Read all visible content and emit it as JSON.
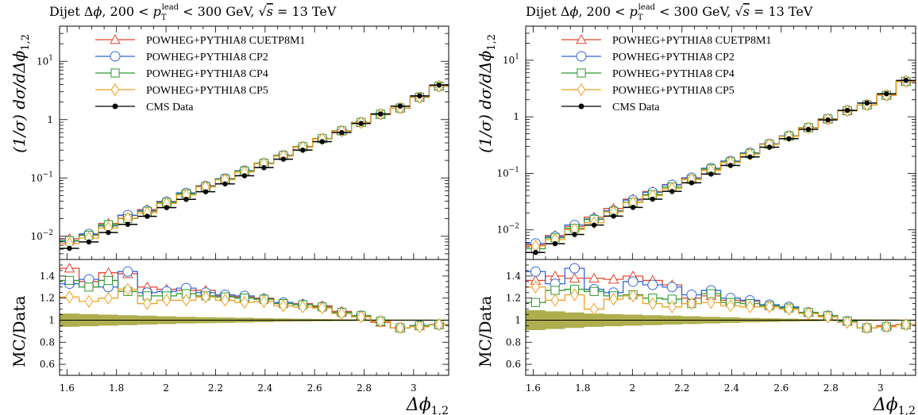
{
  "panels": [
    {
      "title": "Dijet Δφ, 200 < p_T^lead < 300 GeV, √s = 13 TeV",
      "ylabel_main": "(1/σ) dσ/dΔφ_{1,2}",
      "ylabel_ratio": "MC/Data",
      "xlabel": "Δφ_{1,2}"
    },
    {
      "title": "Dijet Δφ, 200 < p_T^lead < 300 GeV, √s = 13 TeV",
      "ylabel_main": "(1/σ) dσ/dΔφ_{1,2}",
      "ylabel_ratio": "MC/Data",
      "xlabel": "Δφ_{1,2}"
    }
  ],
  "legend": [
    {
      "label": "POWHEG+PYTHIA8 CUETP8M1",
      "color": "#e8452a",
      "marker": "triangle"
    },
    {
      "label": "POWHEG+PYTHIA8 CP2",
      "color": "#3366dd",
      "marker": "circle"
    },
    {
      "label": "POWHEG+PYTHIA8 CP4",
      "color": "#2e9a2e",
      "marker": "square"
    },
    {
      "label": "POWHEG+PYTHIA8 CP5",
      "color": "#f0a020",
      "marker": "diamond"
    },
    {
      "label": "CMS Data",
      "color": "#000000",
      "marker": "dot"
    }
  ],
  "chart_data": [
    {
      "type": "line",
      "panel": "left",
      "x_tick_labels": [
        "1.6",
        "1.8",
        "2",
        "2.2",
        "2.4",
        "2.6",
        "2.8",
        "3"
      ],
      "main_y_tick_labels": [
        "10^-2",
        "10^-1",
        "1",
        "10^1"
      ],
      "ratio_y_tick_labels": [
        "0.6",
        "0.8",
        "1",
        "1.2",
        "1.4"
      ],
      "xlim": [
        1.57,
        3.1416
      ],
      "ylim_main": [
        0.004,
        40
      ],
      "ylim_main_scale": "log",
      "ylim_ratio": [
        0.5,
        1.55
      ],
      "bin_edges": [
        1.571,
        1.649,
        1.728,
        1.806,
        1.885,
        1.963,
        2.042,
        2.121,
        2.199,
        2.278,
        2.356,
        2.435,
        2.513,
        2.592,
        2.67,
        2.749,
        2.827,
        2.906,
        2.985,
        3.063,
        3.142
      ],
      "data": [
        0.0062,
        0.008,
        0.0116,
        0.016,
        0.022,
        0.031,
        0.043,
        0.058,
        0.079,
        0.109,
        0.15,
        0.21,
        0.3,
        0.42,
        0.6,
        0.86,
        1.25,
        1.7,
        2.55,
        3.9
      ],
      "ratios": [
        {
          "name": "POWHEG+PYTHIA8 CUETP8M1",
          "values": [
            1.47,
            1.35,
            1.43,
            1.42,
            1.3,
            1.28,
            1.27,
            1.27,
            1.22,
            1.21,
            1.2,
            1.16,
            1.15,
            1.13,
            1.08,
            1.04,
            0.98,
            0.93,
            0.95,
            0.96
          ]
        },
        {
          "name": "POWHEG+PYTHIA8 CP2",
          "values": [
            1.33,
            1.37,
            1.3,
            1.44,
            1.25,
            1.26,
            1.29,
            1.25,
            1.23,
            1.22,
            1.19,
            1.16,
            1.14,
            1.12,
            1.07,
            1.04,
            0.99,
            0.93,
            0.95,
            0.96
          ]
        },
        {
          "name": "POWHEG+PYTHIA8 CP4",
          "values": [
            1.36,
            1.3,
            1.36,
            1.26,
            1.22,
            1.22,
            1.24,
            1.22,
            1.21,
            1.2,
            1.19,
            1.15,
            1.14,
            1.12,
            1.07,
            1.04,
            0.99,
            0.93,
            0.95,
            0.96
          ]
        },
        {
          "name": "POWHEG+PYTHIA8 CP5",
          "values": [
            1.21,
            1.17,
            1.2,
            1.28,
            1.15,
            1.18,
            1.18,
            1.21,
            1.18,
            1.16,
            1.17,
            1.13,
            1.12,
            1.11,
            1.06,
            1.03,
            0.99,
            0.93,
            0.94,
            0.96
          ]
        }
      ],
      "data_uncertainty": [
        0.06,
        0.055,
        0.05,
        0.045,
        0.04,
        0.035,
        0.03,
        0.027,
        0.024,
        0.021,
        0.018,
        0.015,
        0.013,
        0.011,
        0.009,
        0.008,
        0.007,
        0.006,
        0.006,
        0.005
      ]
    },
    {
      "type": "line",
      "panel": "right",
      "x_tick_labels": [
        "1.6",
        "1.8",
        "2",
        "2.2",
        "2.4",
        "2.6",
        "2.8",
        "3"
      ],
      "main_y_tick_labels": [
        "10^-2",
        "10^-1",
        "1",
        "10^1"
      ],
      "ratio_y_tick_labels": [
        "0.6",
        "0.8",
        "1",
        "1.2",
        "1.4"
      ],
      "xlim": [
        1.57,
        3.1416
      ],
      "ylim_main": [
        0.003,
        40
      ],
      "ylim_main_scale": "log",
      "ylim_ratio": [
        0.5,
        1.55
      ],
      "bin_edges": [
        1.571,
        1.649,
        1.728,
        1.806,
        1.885,
        1.963,
        2.042,
        2.121,
        2.199,
        2.278,
        2.356,
        2.435,
        2.513,
        2.592,
        2.67,
        2.749,
        2.827,
        2.906,
        2.985,
        3.063,
        3.142
      ],
      "data": [
        0.004,
        0.0057,
        0.0083,
        0.0122,
        0.0175,
        0.025,
        0.035,
        0.048,
        0.068,
        0.097,
        0.138,
        0.195,
        0.29,
        0.41,
        0.6,
        0.88,
        1.3,
        1.75,
        2.55,
        4.4
      ],
      "ratios": [
        {
          "name": "POWHEG+PYTHIA8 CUETP8M1",
          "values": [
            1.36,
            1.4,
            1.38,
            1.38,
            1.37,
            1.4,
            1.36,
            1.32,
            1.2,
            1.22,
            1.18,
            1.17,
            1.14,
            1.12,
            1.07,
            1.04,
            0.99,
            0.93,
            0.95,
            0.96
          ]
        },
        {
          "name": "POWHEG+PYTHIA8 CP2",
          "values": [
            1.44,
            1.33,
            1.47,
            1.28,
            1.25,
            1.35,
            1.32,
            1.3,
            1.23,
            1.27,
            1.2,
            1.18,
            1.14,
            1.12,
            1.07,
            1.04,
            0.99,
            0.93,
            0.94,
            0.96
          ]
        },
        {
          "name": "POWHEG+PYTHIA8 CP4",
          "values": [
            1.16,
            1.27,
            1.28,
            1.26,
            1.22,
            1.23,
            1.2,
            1.19,
            1.15,
            1.24,
            1.16,
            1.15,
            1.13,
            1.11,
            1.07,
            1.04,
            0.99,
            0.93,
            0.94,
            0.96
          ]
        },
        {
          "name": "POWHEG+PYTHIA8 CP5",
          "values": [
            1.3,
            1.18,
            1.23,
            1.1,
            1.19,
            1.22,
            1.15,
            1.12,
            1.15,
            1.16,
            1.13,
            1.12,
            1.12,
            1.1,
            1.06,
            1.03,
            0.98,
            0.93,
            0.94,
            0.96
          ]
        }
      ],
      "data_uncertainty": [
        0.09,
        0.08,
        0.07,
        0.06,
        0.055,
        0.05,
        0.045,
        0.04,
        0.035,
        0.03,
        0.025,
        0.02,
        0.017,
        0.014,
        0.011,
        0.009,
        0.008,
        0.007,
        0.006,
        0.005
      ]
    }
  ]
}
